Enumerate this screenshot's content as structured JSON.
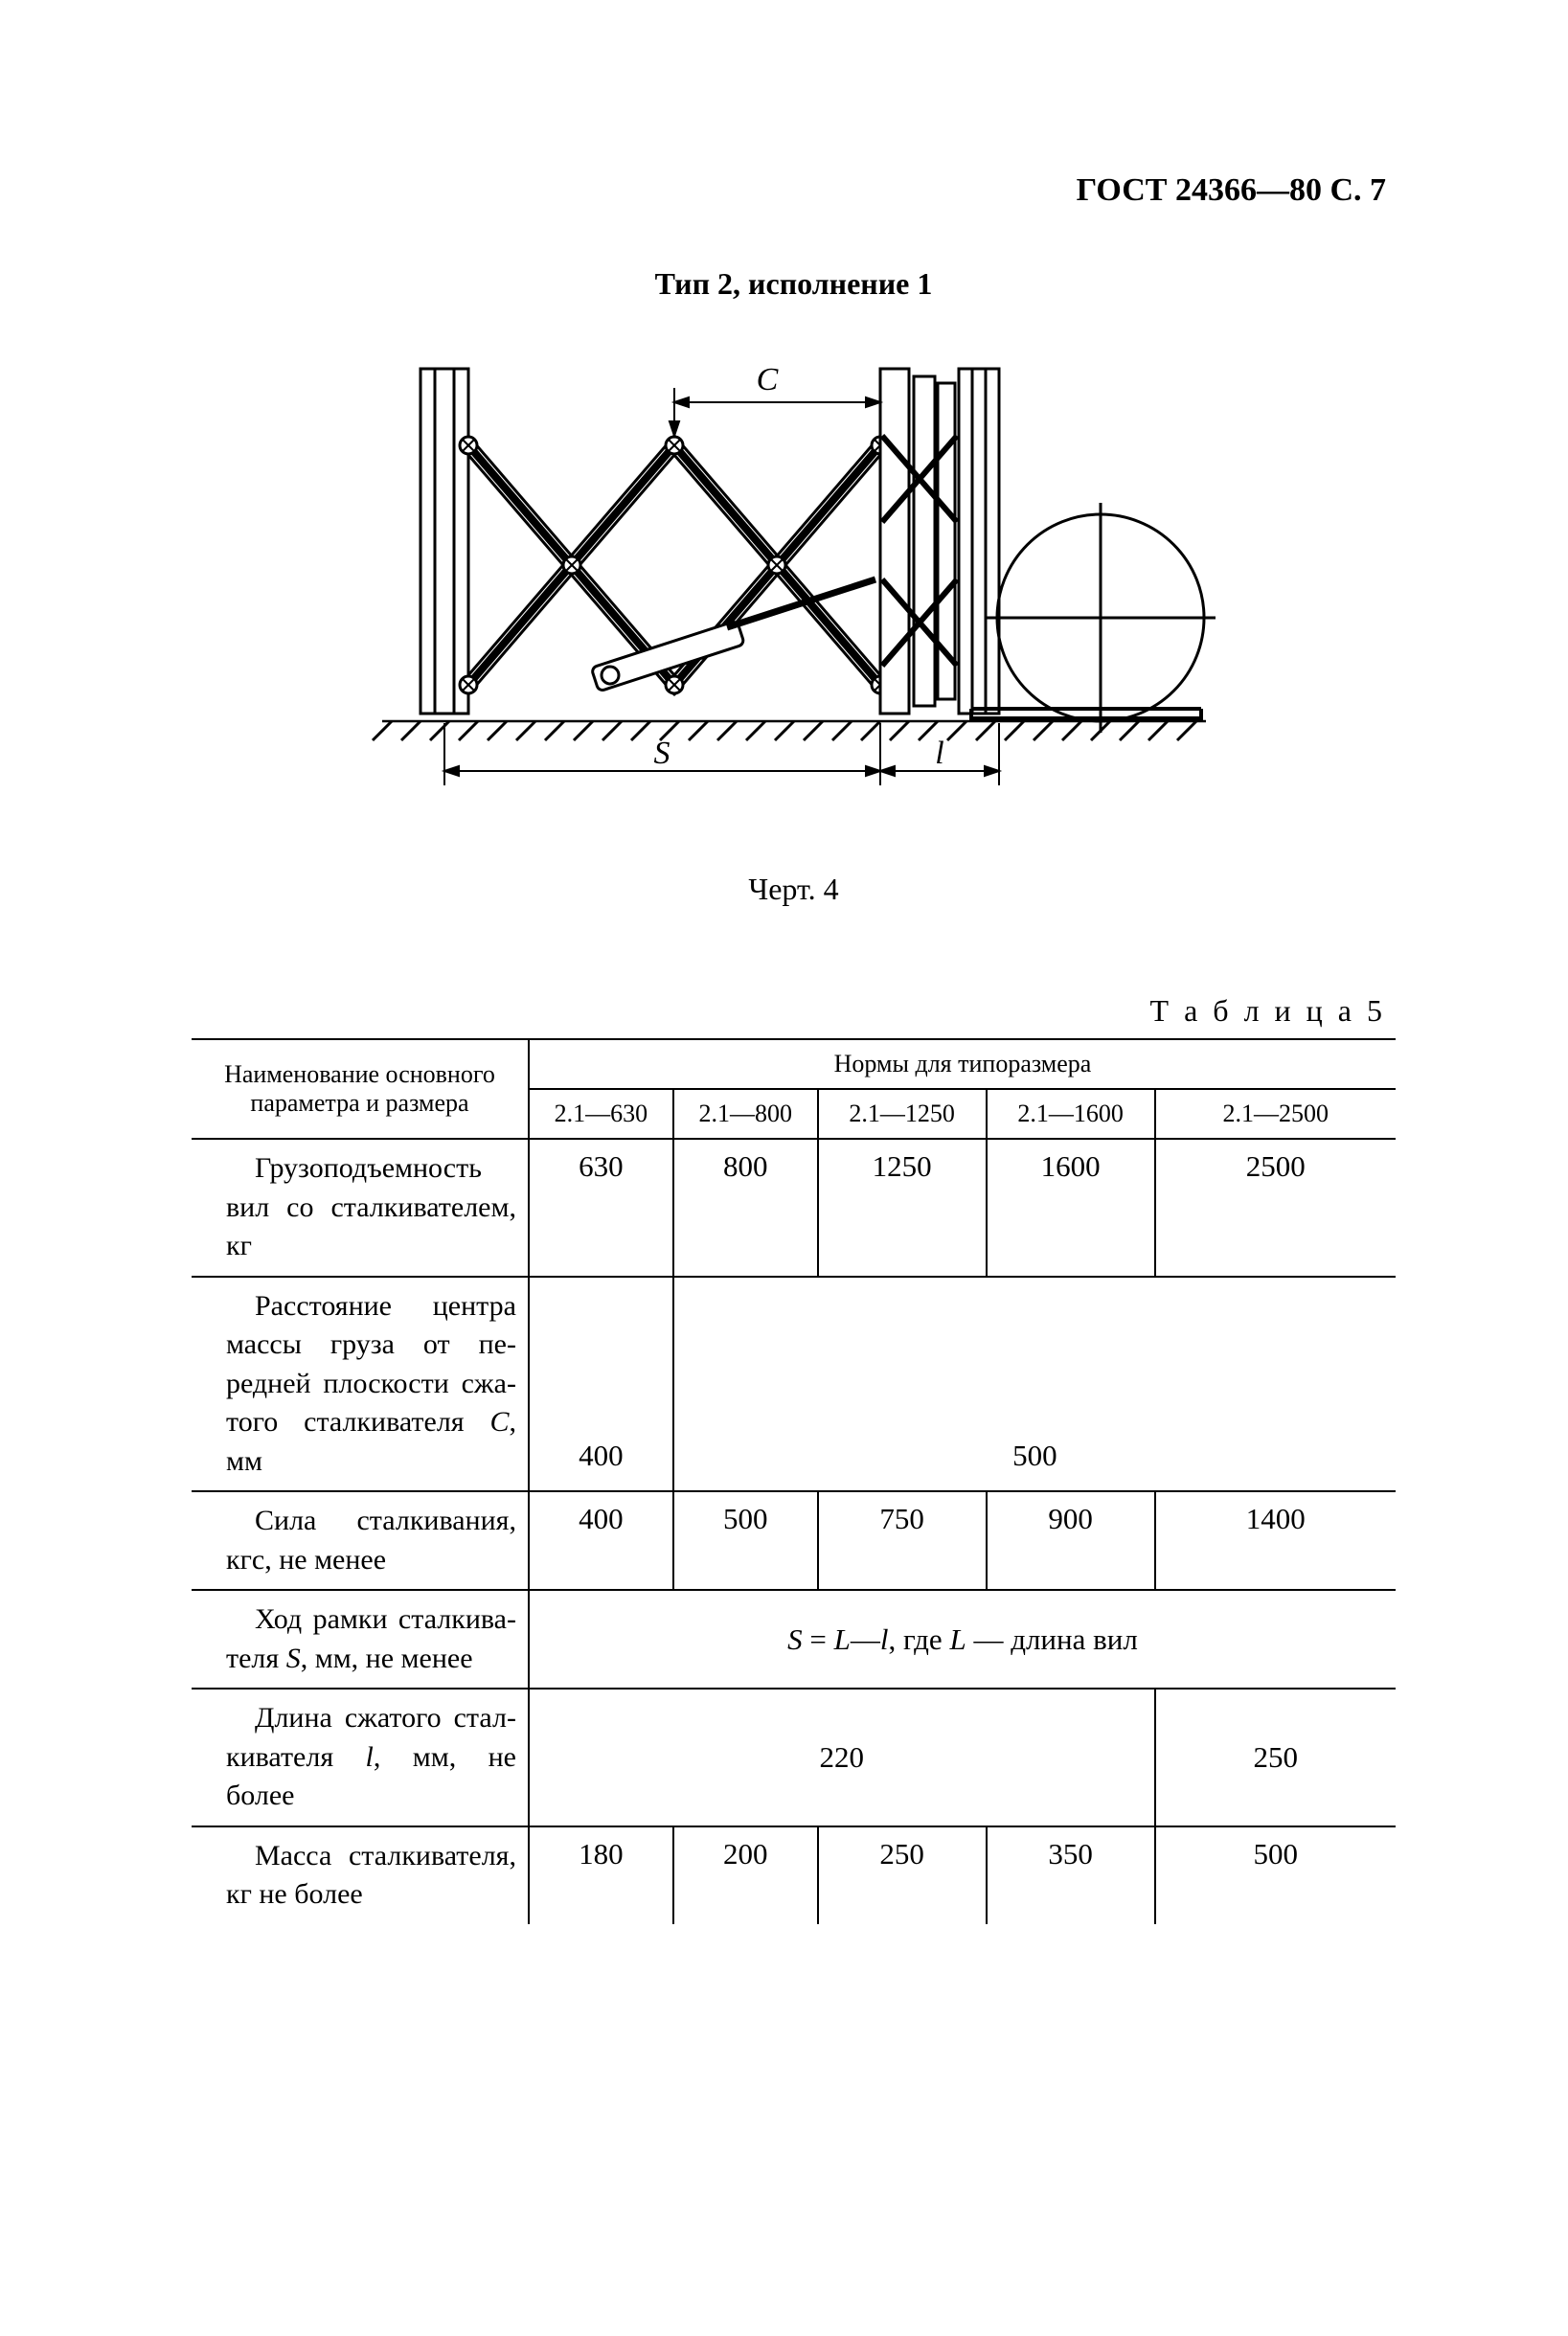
{
  "header": {
    "doc_ref": "ГОСТ 24366—80 С. 7"
  },
  "subtitle": "Тип 2, исполнение 1",
  "figure": {
    "caption": "Черт. 4",
    "labels": {
      "C": "C",
      "S": "S",
      "l": "l"
    },
    "stroke": "#000000",
    "hatch": "#000000"
  },
  "table": {
    "caption": "Т а б л и ц а 5",
    "header_row1": "Наименование основного параметра и размера",
    "header_group": "Нормы для типоразмера",
    "columns": [
      "2.1—630",
      "2.1—800",
      "2.1—1250",
      "2.1—1600",
      "2.1—2500"
    ],
    "col_widths_pct": [
      28,
      12,
      12,
      14,
      14,
      20
    ]
  },
  "rows": {
    "r1": {
      "label": "Грузоподъемность вил со сталкивателем, кг",
      "v": [
        "630",
        "800",
        "1250",
        "1600",
        "2500"
      ]
    },
    "r2": {
      "label_html": "Расстояние центра массы груза от пе­редней плоскости сжа­того сталкивателя <span class='italic'>C</span>, мм",
      "label": "Расстояние центра массы груза от передней плоскости сжатого сталкивателя C, мм",
      "v1": "400",
      "v2_5": "500"
    },
    "r3": {
      "label": "Сила сталкивания, кгс, не менее",
      "v": [
        "400",
        "500",
        "750",
        "900",
        "1400"
      ]
    },
    "r4": {
      "label_html": "Ход рамки сталкива­теля <span class='italic'>S</span>, мм, не менее",
      "label": "Ход рамки сталкивателя S, мм, не менее",
      "formula_html": "<span class='italic'>S</span> = <span class='italic'>L</span>—<span class='italic'>l</span>, где <span class='italic'>L</span> — длина вил",
      "formula": "S = L—l, где L — длина вил"
    },
    "r5": {
      "label_html": "Длина сжатого стал­кивателя <span class='italic'>l</span>, мм, не более",
      "label": "Длина сжатого сталкивателя l, мм, не более",
      "v1_4": "220",
      "v5": "250"
    },
    "r6": {
      "label": "Масса сталкивателя, кг не более",
      "v": [
        "180",
        "200",
        "250",
        "350",
        "500"
      ]
    }
  }
}
